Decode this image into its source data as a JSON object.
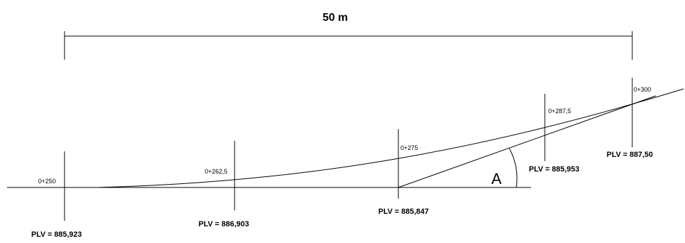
{
  "dimension": {
    "label": "50 m"
  },
  "stations": [
    {
      "name": "0+250",
      "plv": "PLV = 885,923"
    },
    {
      "name": "0+262,5",
      "plv": "PLV = 886,903"
    },
    {
      "name": "0+275",
      "plv": "PLV = 885,847"
    },
    {
      "name": "0+287,5",
      "plv": "PLV = 885,953"
    },
    {
      "name": "0+300",
      "plv": "PLV = 887,50"
    }
  ],
  "angle": {
    "label": "A"
  }
}
